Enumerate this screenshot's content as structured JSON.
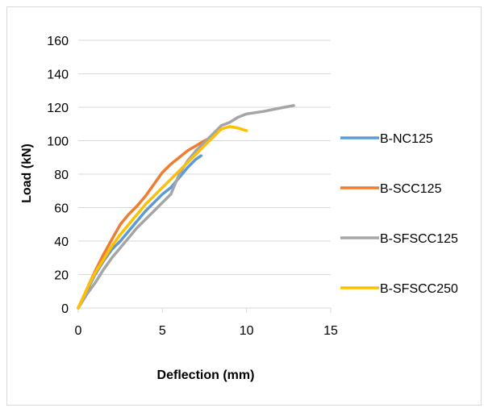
{
  "chart_data": {
    "type": "line",
    "title": "",
    "xlabel": "Deflection (mm)",
    "ylabel": "Load (kN)",
    "xlim": [
      0,
      15
    ],
    "ylim": [
      0,
      160
    ],
    "xticks": [
      "0",
      "5",
      "10",
      "15"
    ],
    "yticks": [
      "0",
      "20",
      "40",
      "60",
      "80",
      "100",
      "120",
      "140",
      "160"
    ],
    "grid": "horizontal",
    "legend_position": "right",
    "series": [
      {
        "name": "B-NC125",
        "color": "#5b9bd5",
        "points": [
          [
            0,
            0
          ],
          [
            0.5,
            10
          ],
          [
            1,
            20
          ],
          [
            1.5,
            28
          ],
          [
            2,
            35
          ],
          [
            2.5,
            40
          ],
          [
            3,
            46
          ],
          [
            3.5,
            52
          ],
          [
            4,
            58
          ],
          [
            4.5,
            63
          ],
          [
            5,
            68
          ],
          [
            5.5,
            72
          ],
          [
            6,
            78
          ],
          [
            6.5,
            84
          ],
          [
            7,
            89
          ],
          [
            7.3,
            91
          ]
        ]
      },
      {
        "name": "B-SCC125",
        "color": "#ed7d31",
        "points": [
          [
            0,
            0
          ],
          [
            0.5,
            11
          ],
          [
            1,
            22
          ],
          [
            1.5,
            32
          ],
          [
            2,
            41
          ],
          [
            2.5,
            50
          ],
          [
            3,
            56
          ],
          [
            3.5,
            61
          ],
          [
            4,
            67
          ],
          [
            4.5,
            74
          ],
          [
            5,
            81
          ],
          [
            5.5,
            86
          ],
          [
            6,
            90
          ],
          [
            6.5,
            94
          ],
          [
            7,
            97
          ],
          [
            7.5,
            100
          ],
          [
            8,
            102
          ]
        ]
      },
      {
        "name": "B-SFSCC125",
        "color": "#a5a5a5",
        "points": [
          [
            0,
            0
          ],
          [
            0.5,
            8
          ],
          [
            1,
            15
          ],
          [
            1.5,
            23
          ],
          [
            2,
            30
          ],
          [
            2.5,
            36
          ],
          [
            3,
            42
          ],
          [
            3.5,
            48
          ],
          [
            4,
            53
          ],
          [
            4.5,
            58
          ],
          [
            5,
            63
          ],
          [
            5.5,
            68
          ],
          [
            6,
            80
          ],
          [
            6.5,
            88
          ],
          [
            7,
            94
          ],
          [
            7.5,
            99
          ],
          [
            8,
            104
          ],
          [
            8.5,
            109
          ],
          [
            9,
            111
          ],
          [
            9.5,
            114
          ],
          [
            10,
            116
          ],
          [
            11,
            117.5
          ],
          [
            12,
            119.5
          ],
          [
            12.8,
            121
          ]
        ]
      },
      {
        "name": "B-SFSCC250",
        "color": "#ffc000",
        "points": [
          [
            0,
            0
          ],
          [
            0.5,
            11
          ],
          [
            1,
            21
          ],
          [
            1.5,
            29
          ],
          [
            2,
            37
          ],
          [
            2.5,
            44
          ],
          [
            3,
            50
          ],
          [
            3.5,
            56
          ],
          [
            4,
            62
          ],
          [
            4.5,
            67
          ],
          [
            5,
            72
          ],
          [
            5.5,
            77
          ],
          [
            6,
            82
          ],
          [
            6.5,
            87
          ],
          [
            7,
            92
          ],
          [
            7.5,
            97
          ],
          [
            8,
            102
          ],
          [
            8.5,
            107
          ],
          [
            9,
            108.5
          ],
          [
            9.5,
            107.5
          ],
          [
            10,
            106
          ]
        ]
      }
    ]
  }
}
